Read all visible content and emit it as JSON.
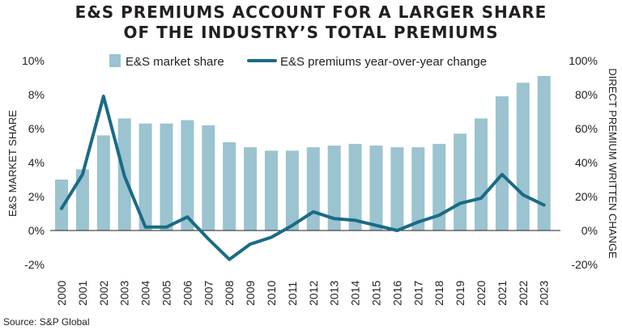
{
  "chart_data": {
    "type": "bar",
    "title_lines": [
      "E&S PREMIUMS ACCOUNT FOR A LARGER SHARE",
      "OF THE INDUSTRY’S TOTAL PREMIUMS"
    ],
    "source": "Source: S&P Global",
    "categories": [
      "2000",
      "2001",
      "2002",
      "2003",
      "2004",
      "2005",
      "2006",
      "2007",
      "2008",
      "2009",
      "2010",
      "2011",
      "2012",
      "2013",
      "2014",
      "2015",
      "2016",
      "2017",
      "2018",
      "2019",
      "2020",
      "2021",
      "2022",
      "2023"
    ],
    "series": [
      {
        "name": "E&S market share",
        "type": "bar",
        "axis": "left",
        "color": "#9bc3d0",
        "values": [
          3.0,
          3.6,
          5.6,
          6.6,
          6.3,
          6.3,
          6.5,
          6.2,
          5.2,
          4.9,
          4.7,
          4.7,
          4.9,
          5.0,
          5.1,
          5.0,
          4.9,
          4.9,
          5.1,
          5.7,
          6.6,
          7.9,
          8.7,
          9.1
        ]
      },
      {
        "name": "E&S premiums year-over-year change",
        "type": "line",
        "axis": "right",
        "color": "#1a6b85",
        "values": [
          13,
          33,
          79,
          32,
          2,
          2,
          8,
          -5,
          -17,
          -8,
          -4,
          3,
          11,
          7,
          6,
          3,
          0,
          5,
          9,
          16,
          19,
          33,
          21,
          15
        ]
      }
    ],
    "y_left": {
      "label": "E&S MARKET SHARE",
      "ticks": [
        "10%",
        "8%",
        "6%",
        "4%",
        "2%",
        "0%",
        "-2%"
      ],
      "min": -2,
      "max": 10
    },
    "y_right": {
      "label": "DIRECT PREMIUM WRITTEN CHANGE",
      "ticks": [
        "100%",
        "80%",
        "60%",
        "40%",
        "20%",
        "0%",
        "-20%"
      ],
      "min": -20,
      "max": 100
    },
    "legend_position": "top",
    "grid": false,
    "zero_line_color": "#231f20"
  }
}
